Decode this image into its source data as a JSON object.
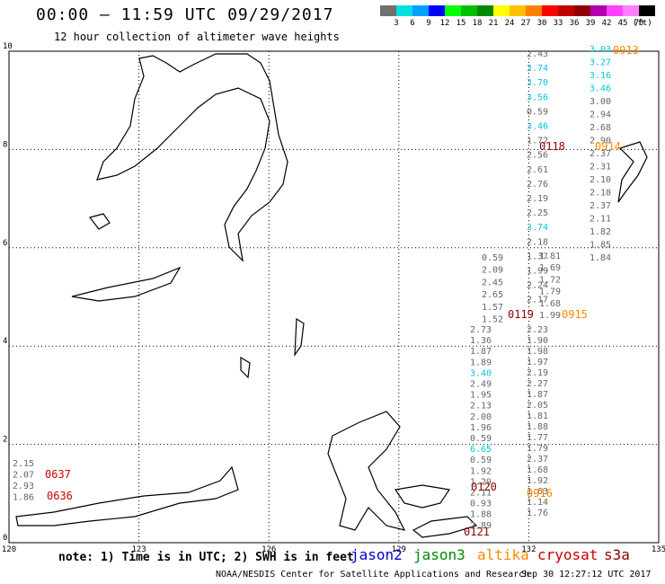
{
  "header": {
    "title": "00:00 – 11:59 UTC 09/29/2017",
    "subtitle": "12 hour collection of altimeter wave heights"
  },
  "colorbar": {
    "colors": [
      "#707070",
      "#00e0e0",
      "#00a0ff",
      "#0000ff",
      "#00ff00",
      "#00c000",
      "#008800",
      "#ffff00",
      "#ffc000",
      "#ff8000",
      "#ff0000",
      "#c00000",
      "#900000",
      "#b000b0",
      "#ff40ff",
      "#ff80ff",
      "#000000"
    ],
    "labels": [
      "3",
      "6",
      "9",
      "12",
      "15",
      "18",
      "21",
      "24",
      "27",
      "30",
      "33",
      "36",
      "39",
      "42",
      "45",
      "70"
    ],
    "unit": "(ft)"
  },
  "axes": {
    "x_ticks": [
      "120",
      "123",
      "126",
      "129",
      "132",
      "135"
    ],
    "y_ticks": [
      "0",
      "2",
      "4",
      "6",
      "8",
      "10"
    ]
  },
  "tracks": [
    {
      "satellite": "altika",
      "time": "0913",
      "color": "#ff8800",
      "values": [
        "3.03",
        "3.27",
        "3.16",
        "3.46",
        "3.00",
        "2.94",
        "2.68",
        "2.90",
        "2.37",
        "2.31",
        "2.10",
        "2.18",
        "2.37",
        "2.11",
        "1.82",
        "1.85",
        "1.84"
      ]
    },
    {
      "satellite": "cryosat",
      "time": "0118",
      "color": "#8b0000",
      "values": [
        "2.43",
        "3.74",
        "3.70",
        "3.56",
        "0.59",
        "3.46",
        "1.72",
        "2.56",
        "2.61",
        "2.76",
        "2.19",
        "2.25",
        "3.74",
        "2.18",
        "1.37",
        "1.99",
        "2.24",
        "2.17"
      ]
    },
    {
      "satellite": "altika",
      "time": "0914",
      "color": "#ff8800",
      "values": []
    },
    {
      "satellite": "cryosat",
      "time": "0119",
      "color": "#8b0000",
      "values": [
        "0.59",
        "2.09",
        "2.45",
        "2.65",
        "1.57",
        "1.52"
      ]
    },
    {
      "satellite": "altika",
      "time": "0915",
      "color": "#ff8800",
      "values": [
        "1.81",
        "1.69",
        "1.72",
        "1.79",
        "1.68",
        "1.99"
      ]
    },
    {
      "satellite": "mixed",
      "time": "",
      "color": "#777777",
      "values": [
        "2.73",
        "1.36",
        "1.87",
        "1.89",
        "3.40",
        "2.49",
        "1.95",
        "2.13",
        "2.00",
        "1.96",
        "0.59",
        "6.65",
        "0.59",
        "1.92",
        "1.29",
        "2.11",
        "0.93",
        "1.88",
        "2.89"
      ]
    },
    {
      "satellite": "altika",
      "time": "0916",
      "color": "#ff8800",
      "values": [
        "2.23",
        "1.90",
        "1.98",
        "1.97",
        "2.19",
        "2.27",
        "1.87",
        "2.05",
        "1.81",
        "1.88",
        "1.77",
        "1.79",
        "2.37",
        "1.68",
        "1.92",
        "1.63",
        "1.14",
        "1.76"
      ]
    },
    {
      "satellite": "cryosat",
      "time": "0120",
      "color": "#8b0000",
      "values": []
    },
    {
      "satellite": "cryosat",
      "time": "0121",
      "color": "#8b0000",
      "values": []
    },
    {
      "satellite": "cryosat",
      "time": "0637",
      "color": "#cc0000",
      "values": [
        "2.15",
        "2.07",
        "2.93",
        "1.86"
      ]
    },
    {
      "satellite": "cryosat",
      "time": "0636",
      "color": "#cc0000",
      "values": []
    }
  ],
  "note": "note:  1) Time is in UTC;  2) SWH is in feet",
  "legend": [
    {
      "label": "jason2",
      "color": "#0000cc"
    },
    {
      "label": "jason3",
      "color": "#008800"
    },
    {
      "label": "altika",
      "color": "#ff8800"
    },
    {
      "label": "cryosat",
      "color": "#cc0000"
    },
    {
      "label": "s3a",
      "color": "#8b0000"
    }
  ],
  "footer": {
    "credit": "NOAA/NESDIS Center for Satellite Applications and Research",
    "timestamp": "Sep 30 12:27:12 UTC 2017"
  }
}
